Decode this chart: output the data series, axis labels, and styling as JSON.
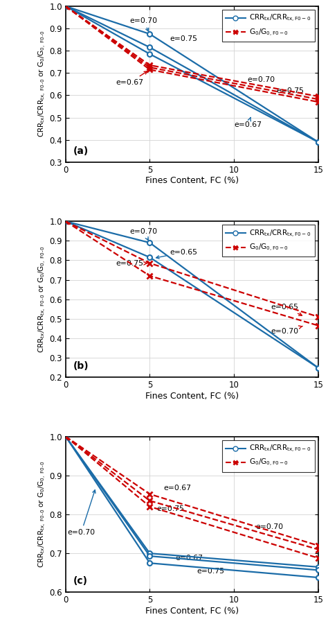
{
  "panel_a": {
    "ylim": [
      0.3,
      1.0
    ],
    "yticks": [
      0.3,
      0.4,
      0.5,
      0.6,
      0.7,
      0.8,
      0.9,
      1.0
    ],
    "label": "(a)",
    "crr_lines": [
      {
        "e": "e=0.70",
        "x": [
          0,
          5,
          15
        ],
        "y": [
          1.0,
          0.875,
          0.39
        ]
      },
      {
        "e": "e=0.75",
        "x": [
          0,
          5,
          15
        ],
        "y": [
          1.0,
          0.815,
          0.39
        ]
      },
      {
        "e": "e=0.67",
        "x": [
          0,
          5,
          15
        ],
        "y": [
          1.0,
          0.785,
          0.39
        ]
      }
    ],
    "g0_lines": [
      {
        "e": "e=0.70",
        "x": [
          0,
          5,
          15
        ],
        "y": [
          1.0,
          0.735,
          0.595
        ]
      },
      {
        "e": "e=0.75",
        "x": [
          0,
          5,
          15
        ],
        "y": [
          1.0,
          0.725,
          0.582
        ]
      },
      {
        "e": "e=0.67",
        "x": [
          0,
          5,
          15
        ],
        "y": [
          1.0,
          0.715,
          0.57
        ]
      }
    ]
  },
  "panel_b": {
    "ylim": [
      0.2,
      1.0
    ],
    "yticks": [
      0.2,
      0.3,
      0.4,
      0.5,
      0.6,
      0.7,
      0.8,
      0.9,
      1.0
    ],
    "label": "(b)",
    "crr_lines": [
      {
        "e": "e=0.70",
        "x": [
          0,
          5,
          15
        ],
        "y": [
          1.0,
          0.89,
          0.248
        ]
      },
      {
        "e": "e=0.65",
        "x": [
          0,
          5,
          15
        ],
        "y": [
          1.0,
          0.815,
          0.248
        ]
      }
    ],
    "g0_lines": [
      {
        "e": "e=0.65",
        "x": [
          0,
          5,
          15
        ],
        "y": [
          1.0,
          0.785,
          0.51
        ]
      },
      {
        "e": "e=0.70",
        "x": [
          0,
          5,
          15
        ],
        "y": [
          1.0,
          0.72,
          0.465
        ]
      }
    ]
  },
  "panel_c": {
    "ylim": [
      0.6,
      1.0
    ],
    "yticks": [
      0.6,
      0.7,
      0.8,
      0.9,
      1.0
    ],
    "label": "(c)",
    "crr_lines": [
      {
        "e": "e=0.70",
        "x": [
          0,
          5,
          15
        ],
        "y": [
          1.0,
          0.7,
          0.665
        ]
      },
      {
        "e": "e=0.67",
        "x": [
          0,
          5,
          15
        ],
        "y": [
          1.0,
          0.693,
          0.657
        ]
      },
      {
        "e": "e=0.75",
        "x": [
          0,
          5,
          15
        ],
        "y": [
          1.0,
          0.675,
          0.638
        ]
      }
    ],
    "g0_lines": [
      {
        "e": "e=0.67",
        "x": [
          0,
          5,
          15
        ],
        "y": [
          1.0,
          0.852,
          0.72
        ]
      },
      {
        "e": "e=0.70",
        "x": [
          0,
          5,
          15
        ],
        "y": [
          1.0,
          0.835,
          0.71
        ]
      },
      {
        "e": "e=0.75",
        "x": [
          0,
          5,
          15
        ],
        "y": [
          1.0,
          0.82,
          0.688
        ]
      }
    ]
  },
  "blue_color": "#1b6ca8",
  "red_color": "#cc0000",
  "xlabel": "Fines Content, FC (%)",
  "xlim": [
    0,
    15
  ],
  "xticks": [
    0,
    5,
    10,
    15
  ]
}
